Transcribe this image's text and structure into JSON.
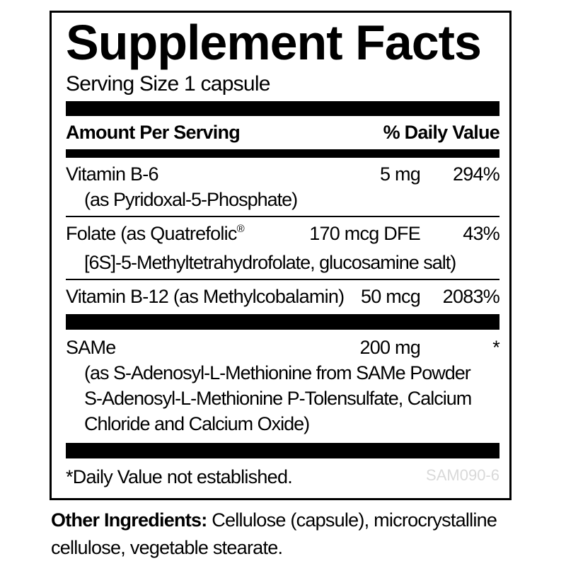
{
  "label": {
    "title": "Supplement Facts",
    "serving_size": "Serving Size 1 capsule",
    "header": {
      "amount": "Amount Per Serving",
      "daily_value": "% Daily Value"
    },
    "rows": [
      {
        "name": "Vitamin B-6",
        "amount": "5 mg",
        "dv": "294%",
        "sub1": "(as Pyridoxal-5-Phosphate)"
      },
      {
        "name": "Folate (as Quatrefolic",
        "reg": "®",
        "amount": "170 mcg DFE",
        "dv": "43%",
        "sub1": "[6S]-5-Methyltetrahydrofolate, glucosamine salt)"
      },
      {
        "name": "Vitamin B-12 (as Methylcobalamin)",
        "amount": "50 mcg",
        "dv": "2083%"
      },
      {
        "name": "SAMe",
        "amount": "200 mg",
        "dv": "*",
        "sub1": "(as S-Adenosyl-L-Methionine from SAMe Powder",
        "sub2": "S-Adenosyl-L-Methionine P-Tolensulfate, Calcium",
        "sub3": "Chloride and Calcium Oxide)"
      }
    ],
    "footnote": "*Daily Value not established.",
    "product_code": "SAM090-6"
  },
  "other_ingredients": {
    "label": "Other Ingredients:",
    "line1": "Cellulose (capsule), microcrystalline",
    "line2": "cellulose, vegetable stearate."
  },
  "colors": {
    "text": "#000000",
    "bar": "#000000",
    "product_code_gray": "#d9d9d9",
    "background": "#ffffff"
  }
}
